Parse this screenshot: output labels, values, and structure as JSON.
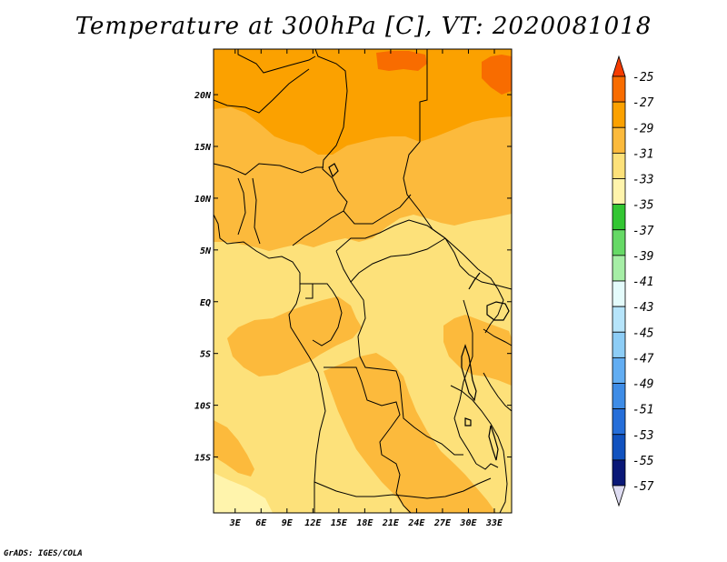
{
  "title": "Temperature at 300hPa [C], VT: 2020081018",
  "credit": "GrADS: IGES/COLA",
  "map": {
    "lon_labels": [
      "3E",
      "6E",
      "9E",
      "12E",
      "15E",
      "18E",
      "21E",
      "24E",
      "27E",
      "30E",
      "33E"
    ],
    "lat_labels": [
      "20N",
      "15N",
      "10N",
      "5N",
      "EQ",
      "5S",
      "10S",
      "15S"
    ],
    "fill_colors": {
      "minus31_to_33": "#fde17a",
      "minus29_to_31": "#fcba3c",
      "minus27_to_29": "#fba100",
      "minus25_to_27": "#f86c00",
      "minus33_to_35": "#fff4ac"
    }
  },
  "colorbar": {
    "labels": [
      "-25",
      "-27",
      "-29",
      "-31",
      "-33",
      "-35",
      "-37",
      "-39",
      "-41",
      "-43",
      "-45",
      "-47",
      "-49",
      "-51",
      "-53",
      "-55",
      "-57"
    ],
    "colors": [
      "#f53c00",
      "#f86c00",
      "#fba100",
      "#fcba3c",
      "#fde17a",
      "#fff4ac",
      "#33c633",
      "#66d966",
      "#a6eea6",
      "#e4fbfb",
      "#b6e4fa",
      "#8dcdf6",
      "#62adf2",
      "#3e8ce6",
      "#256ed9",
      "#1152bf",
      "#0a1877",
      "#dedcf2"
    ]
  }
}
